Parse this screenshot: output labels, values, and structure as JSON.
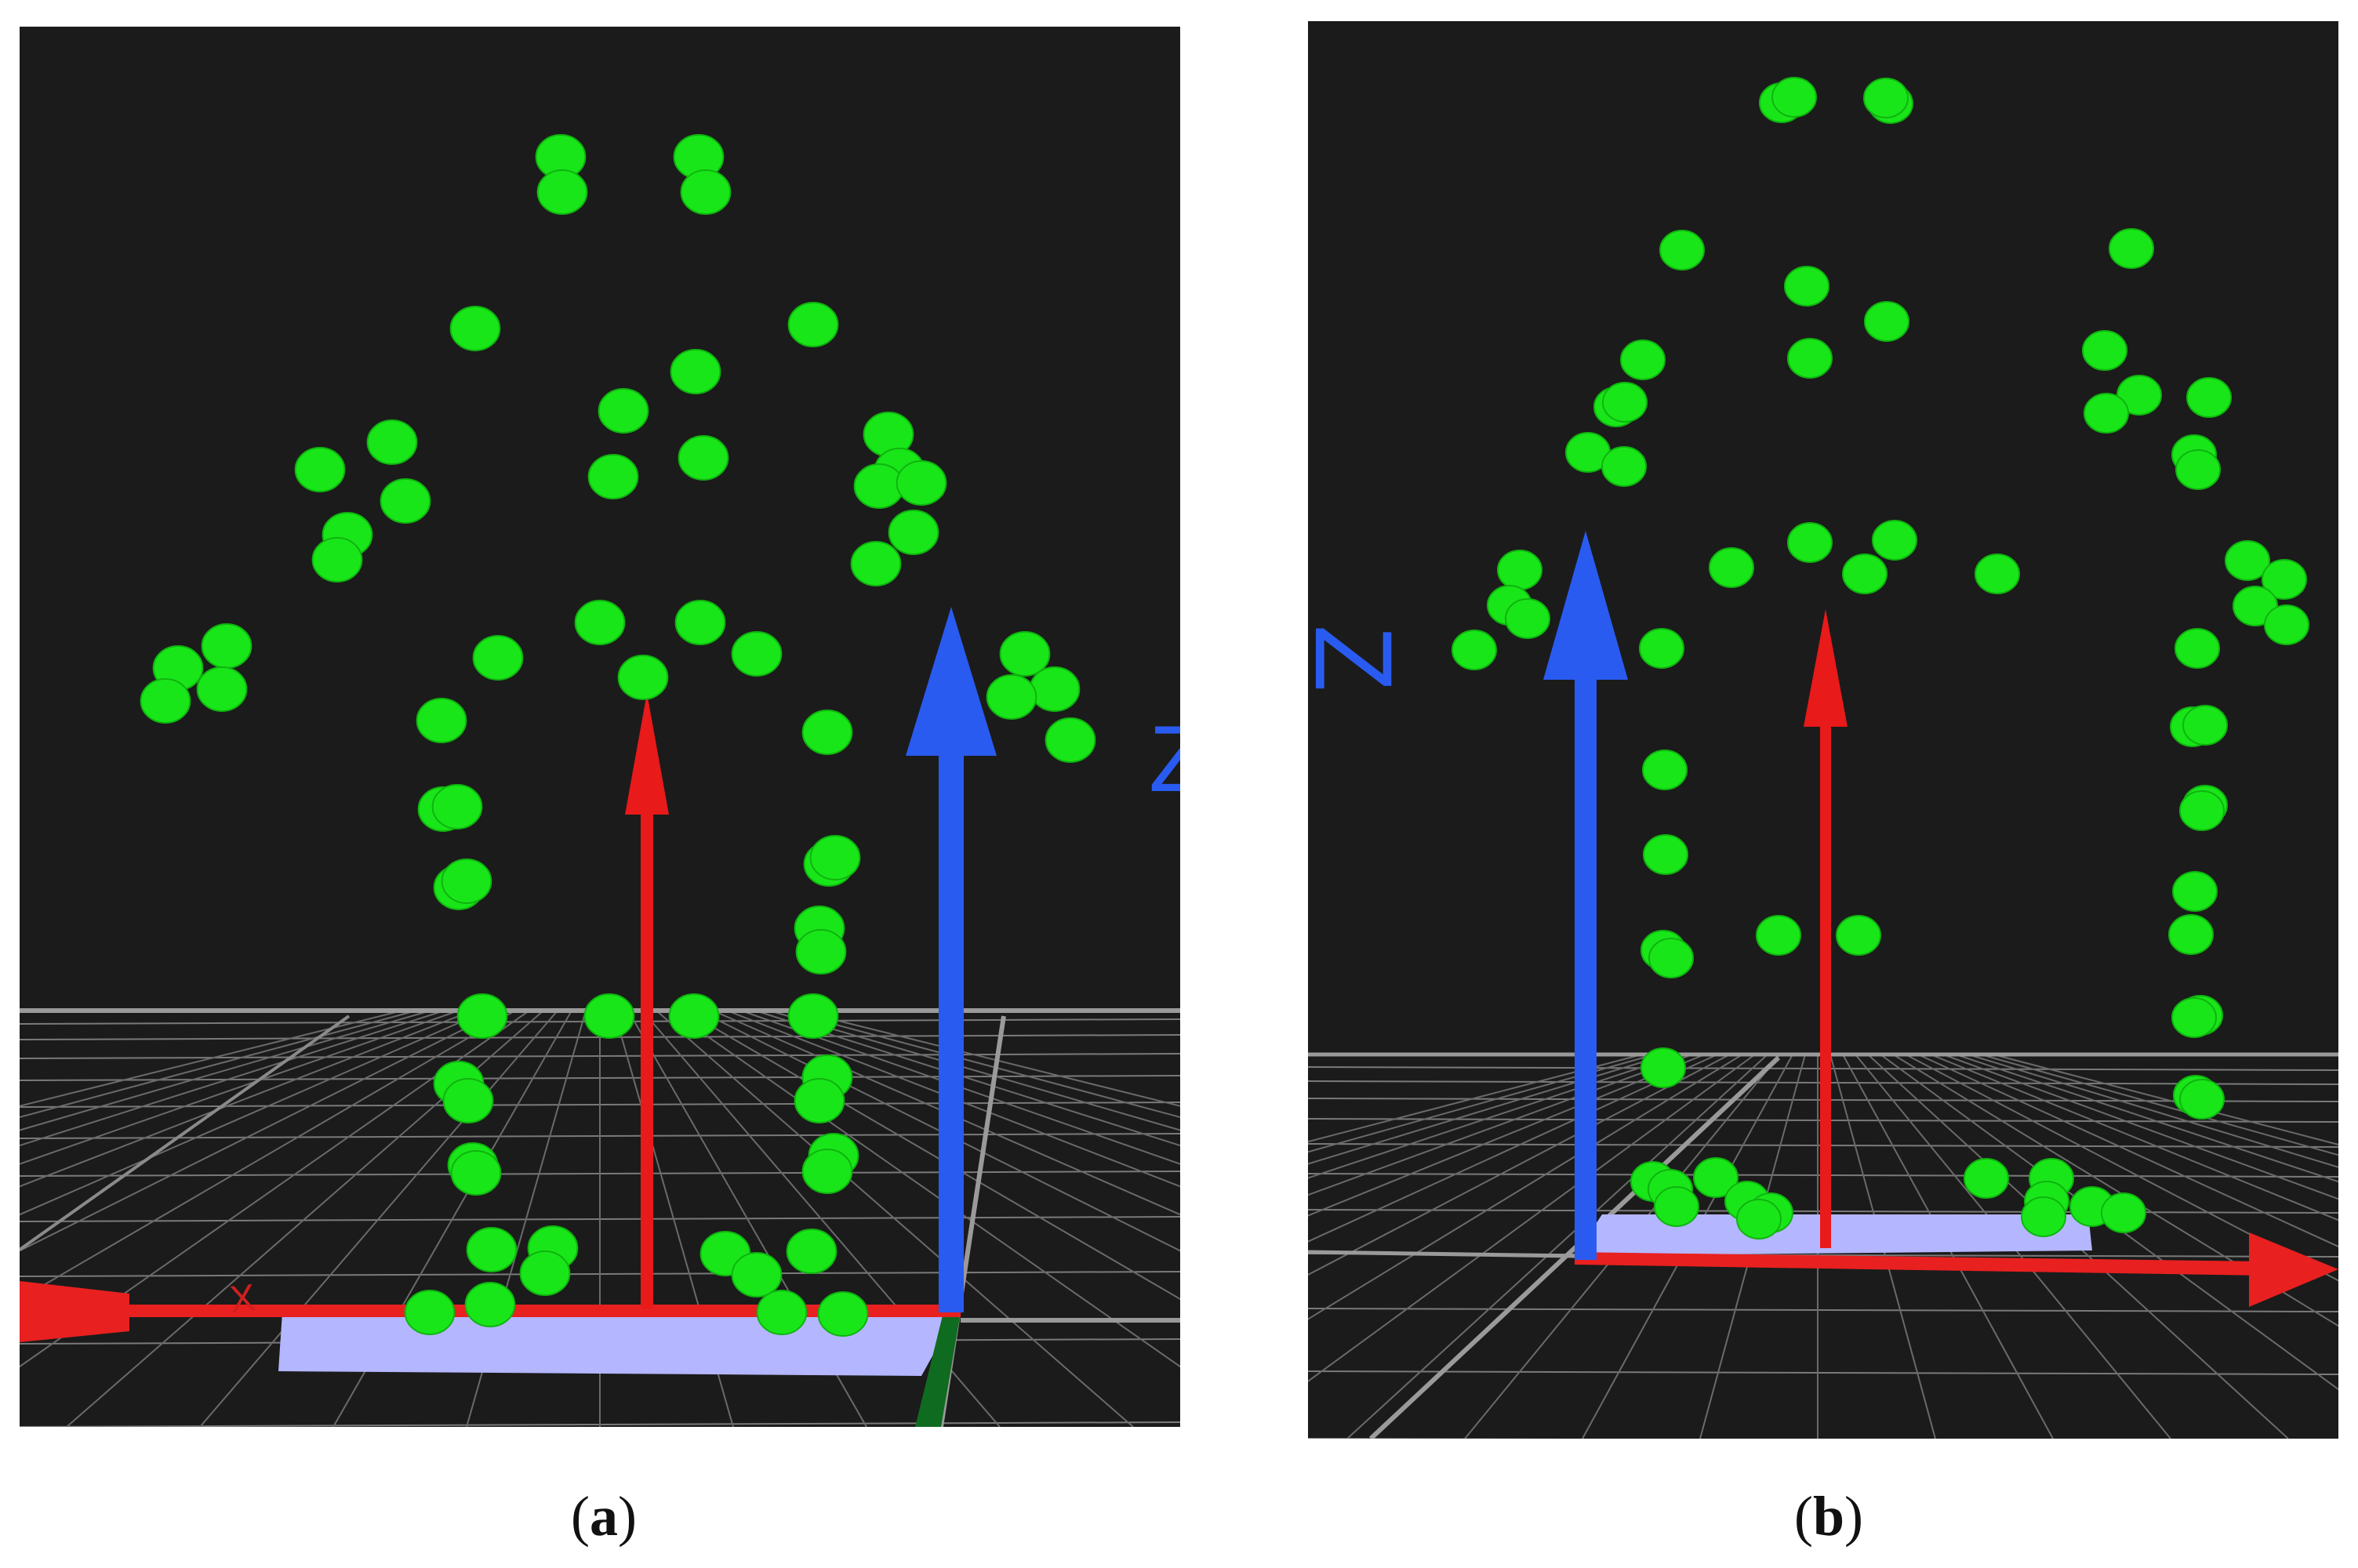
{
  "panels": [
    {
      "id": "a",
      "caption_letter": "a",
      "axis_labels": {
        "x": "X",
        "z": "Z"
      }
    },
    {
      "id": "b",
      "caption_letter": "b",
      "axis_labels": {
        "z": "Z"
      }
    }
  ],
  "colors": {
    "background": "#1b1b1b",
    "grid": "#8a8a8a",
    "marker": "#19e619",
    "x_axis": "#e82020",
    "z_axis": "#2a5bf0",
    "y_axis": "#0f6b1f",
    "floor_plate": "#b4b6ff",
    "body_vector": "#e81a1a"
  }
}
